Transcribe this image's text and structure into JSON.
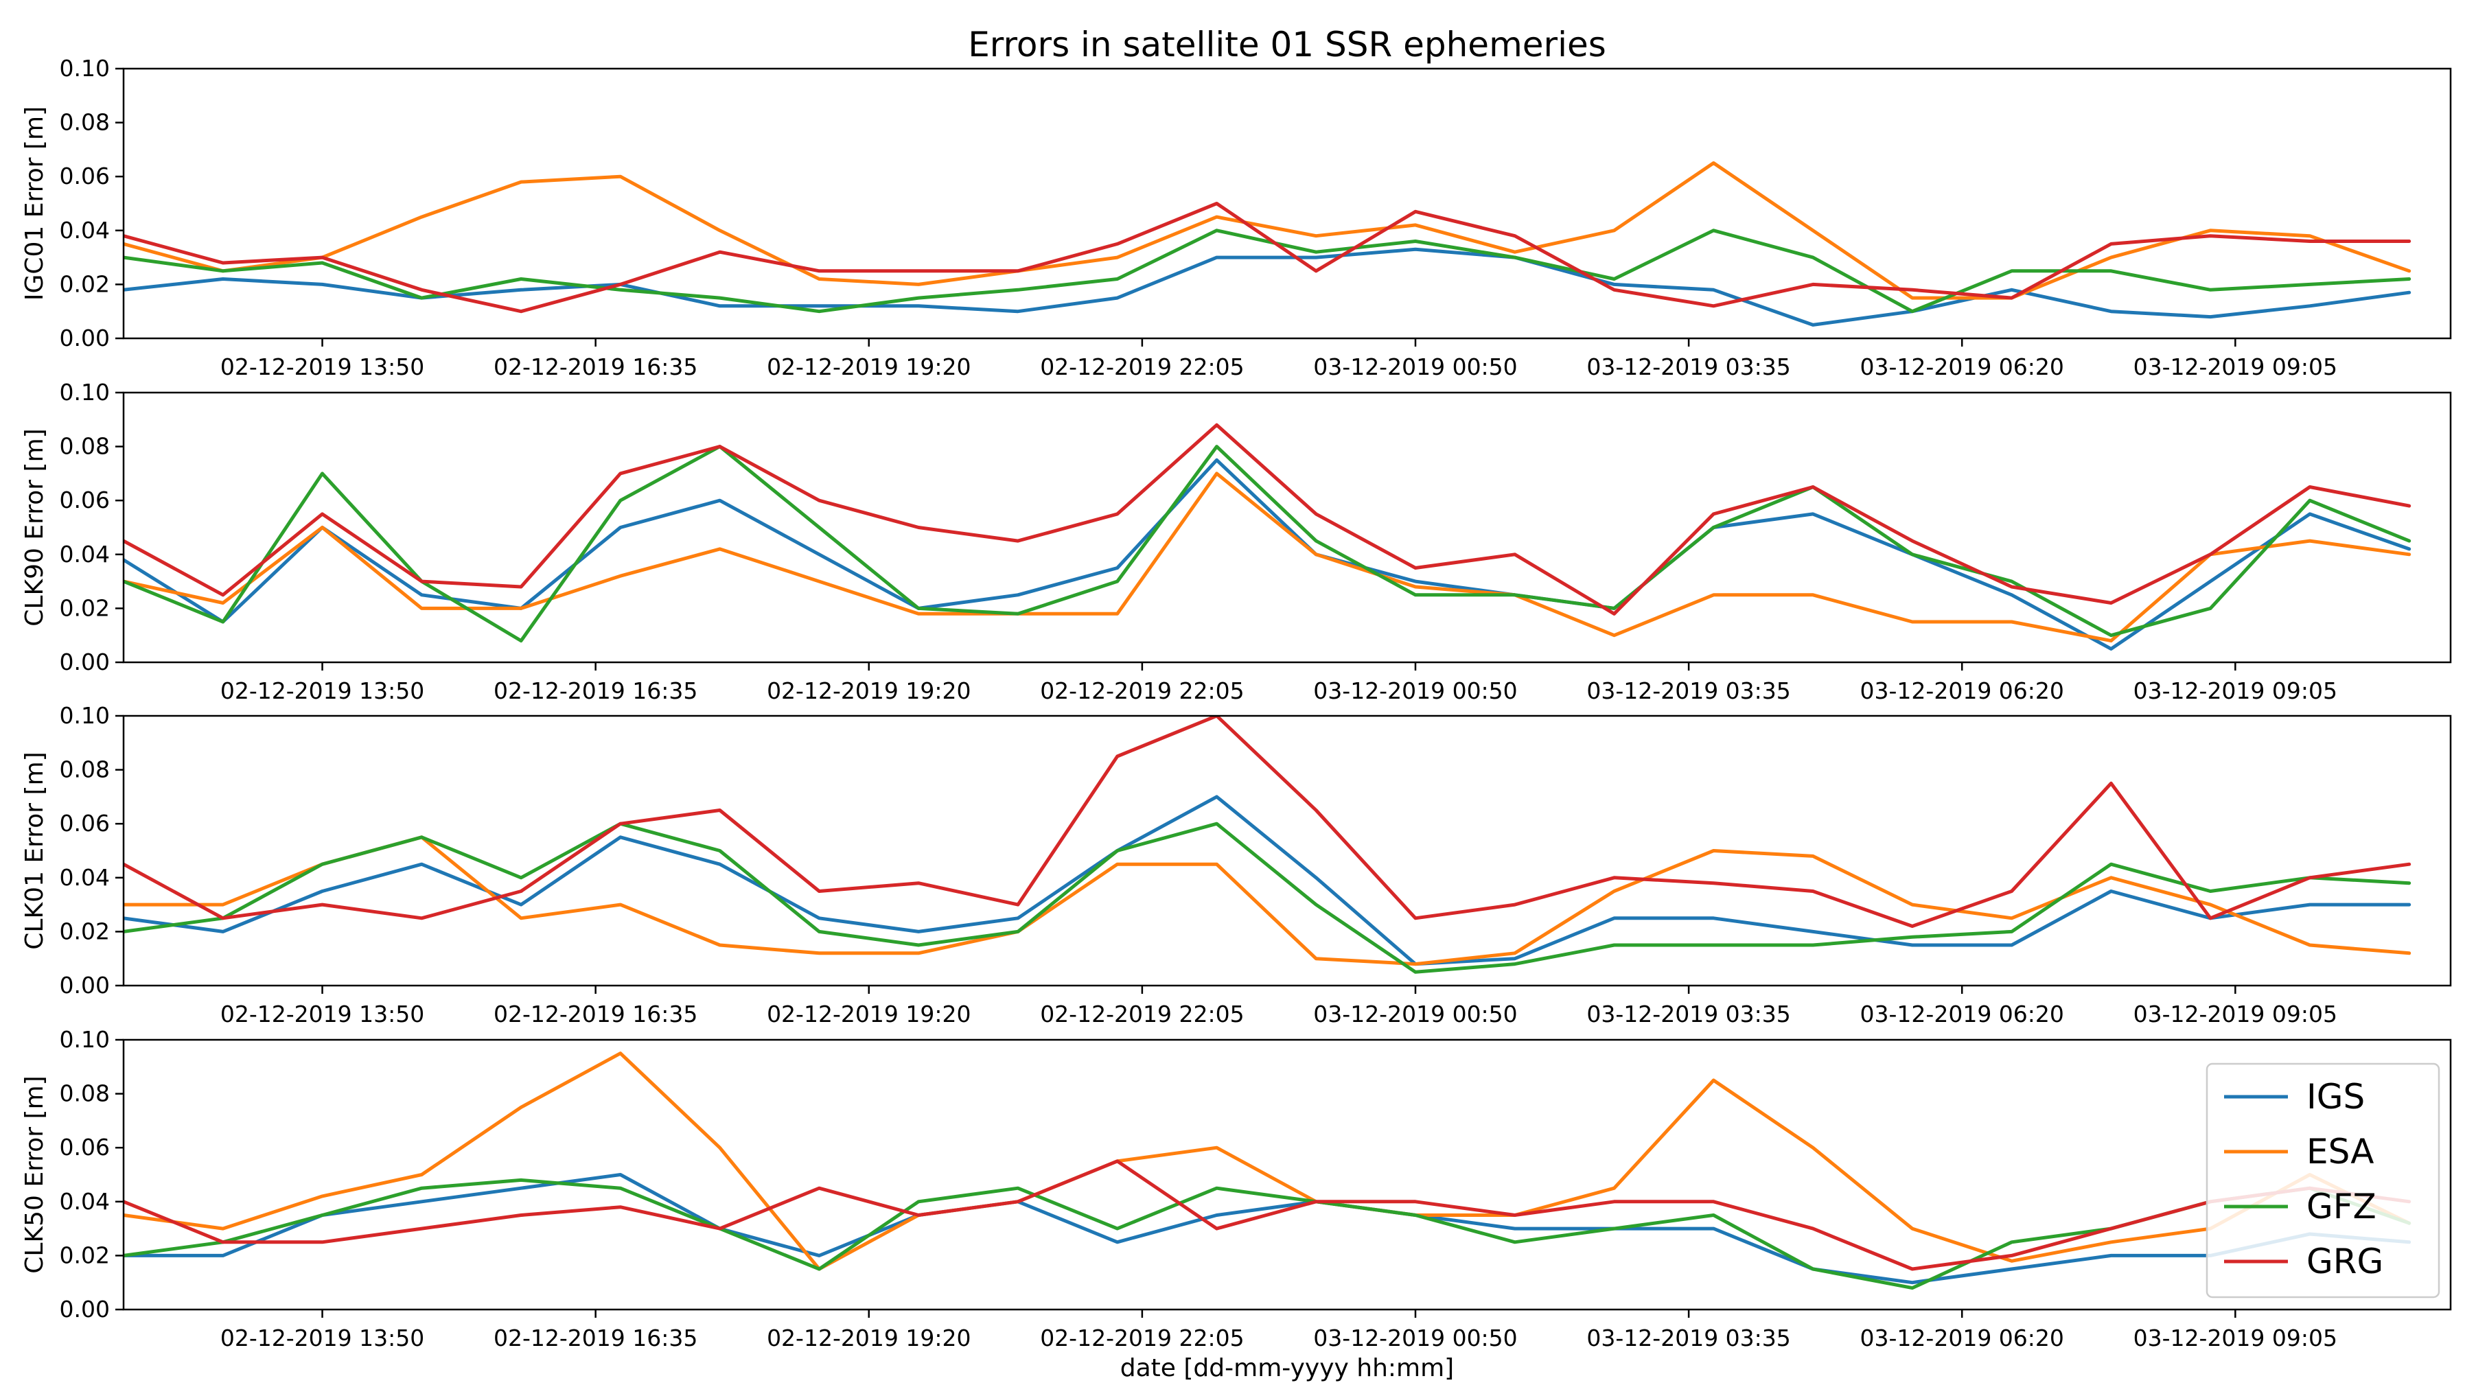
{
  "chart_data": {
    "type": "line",
    "title": "Errors in satellite 01 SSR ephemeries",
    "xlabel": "date [dd-mm-yyyy hh:mm]",
    "x_tick_labels": [
      "02-12-2019 13:50",
      "02-12-2019 16:35",
      "02-12-2019 19:20",
      "02-12-2019 22:05",
      "03-12-2019 00:50",
      "03-12-2019 03:35",
      "03-12-2019 06:20",
      "03-12-2019 09:05"
    ],
    "x": [
      "02-12-2019 11:50",
      "02-12-2019 12:50",
      "02-12-2019 13:50",
      "02-12-2019 14:50",
      "02-12-2019 15:50",
      "02-12-2019 16:50",
      "02-12-2019 17:50",
      "02-12-2019 18:50",
      "02-12-2019 19:50",
      "02-12-2019 20:50",
      "02-12-2019 21:50",
      "02-12-2019 22:50",
      "02-12-2019 23:50",
      "03-12-2019 00:50",
      "03-12-2019 01:50",
      "03-12-2019 02:50",
      "03-12-2019 03:50",
      "03-12-2019 04:50",
      "03-12-2019 05:50",
      "03-12-2019 06:50",
      "03-12-2019 07:50",
      "03-12-2019 08:50",
      "03-12-2019 09:50",
      "03-12-2019 10:50"
    ],
    "legend": {
      "position": "lower-right",
      "entries": [
        "IGS",
        "ESA",
        "GFZ",
        "GRG"
      ]
    },
    "colors": {
      "IGS": "#1f77b4",
      "ESA": "#ff7f0e",
      "GFZ": "#2ca02c",
      "GRG": "#d62728"
    },
    "y_ticks": [
      "0.00",
      "0.02",
      "0.04",
      "0.06",
      "0.08",
      "0.10"
    ],
    "panels": [
      {
        "ylabel": "IGC01 Error [m]",
        "ylim": [
          0,
          0.1
        ],
        "series": [
          {
            "name": "IGS",
            "values": [
              0.018,
              0.022,
              0.02,
              0.015,
              0.018,
              0.02,
              0.012,
              0.012,
              0.012,
              0.01,
              0.015,
              0.03,
              0.03,
              0.033,
              0.03,
              0.02,
              0.018,
              0.005,
              0.01,
              0.018,
              0.01,
              0.008,
              0.012,
              0.017
            ]
          },
          {
            "name": "ESA",
            "values": [
              0.035,
              0.025,
              0.03,
              0.045,
              0.058,
              0.06,
              0.04,
              0.022,
              0.02,
              0.025,
              0.03,
              0.045,
              0.038,
              0.042,
              0.032,
              0.04,
              0.065,
              0.04,
              0.015,
              0.015,
              0.03,
              0.04,
              0.038,
              0.025
            ]
          },
          {
            "name": "GFZ",
            "values": [
              0.03,
              0.025,
              0.028,
              0.015,
              0.022,
              0.018,
              0.015,
              0.01,
              0.015,
              0.018,
              0.022,
              0.04,
              0.032,
              0.036,
              0.03,
              0.022,
              0.04,
              0.03,
              0.01,
              0.025,
              0.025,
              0.018,
              0.02,
              0.022
            ]
          },
          {
            "name": "GRG",
            "values": [
              0.038,
              0.028,
              0.03,
              0.018,
              0.01,
              0.02,
              0.032,
              0.025,
              0.025,
              0.025,
              0.035,
              0.05,
              0.025,
              0.047,
              0.038,
              0.018,
              0.012,
              0.02,
              0.018,
              0.015,
              0.035,
              0.038,
              0.036,
              0.036
            ]
          }
        ]
      },
      {
        "ylabel": "CLK90 Error [m]",
        "ylim": [
          0,
          0.1
        ],
        "series": [
          {
            "name": "IGS",
            "values": [
              0.038,
              0.015,
              0.05,
              0.025,
              0.02,
              0.05,
              0.06,
              0.04,
              0.02,
              0.025,
              0.035,
              0.075,
              0.04,
              0.03,
              0.025,
              0.02,
              0.05,
              0.055,
              0.04,
              0.025,
              0.005,
              0.03,
              0.055,
              0.042
            ]
          },
          {
            "name": "ESA",
            "values": [
              0.03,
              0.022,
              0.05,
              0.02,
              0.02,
              0.032,
              0.042,
              0.03,
              0.018,
              0.018,
              0.018,
              0.07,
              0.04,
              0.028,
              0.025,
              0.01,
              0.025,
              0.025,
              0.015,
              0.015,
              0.008,
              0.04,
              0.045,
              0.04
            ]
          },
          {
            "name": "GFZ",
            "values": [
              0.03,
              0.015,
              0.07,
              0.03,
              0.008,
              0.06,
              0.08,
              0.05,
              0.02,
              0.018,
              0.03,
              0.08,
              0.045,
              0.025,
              0.025,
              0.02,
              0.05,
              0.065,
              0.04,
              0.03,
              0.01,
              0.02,
              0.06,
              0.045
            ]
          },
          {
            "name": "GRG",
            "values": [
              0.045,
              0.025,
              0.055,
              0.03,
              0.028,
              0.07,
              0.08,
              0.06,
              0.05,
              0.045,
              0.055,
              0.088,
              0.055,
              0.035,
              0.04,
              0.018,
              0.055,
              0.065,
              0.045,
              0.028,
              0.022,
              0.04,
              0.065,
              0.058
            ]
          }
        ]
      },
      {
        "ylabel": "CLK01 Error [m]",
        "ylim": [
          0,
          0.1
        ],
        "series": [
          {
            "name": "IGS",
            "values": [
              0.025,
              0.02,
              0.035,
              0.045,
              0.03,
              0.055,
              0.045,
              0.025,
              0.02,
              0.025,
              0.05,
              0.07,
              0.04,
              0.008,
              0.01,
              0.025,
              0.025,
              0.02,
              0.015,
              0.015,
              0.035,
              0.025,
              0.03,
              0.03
            ]
          },
          {
            "name": "ESA",
            "values": [
              0.03,
              0.03,
              0.045,
              0.055,
              0.025,
              0.03,
              0.015,
              0.012,
              0.012,
              0.02,
              0.045,
              0.045,
              0.01,
              0.008,
              0.012,
              0.035,
              0.05,
              0.048,
              0.03,
              0.025,
              0.04,
              0.03,
              0.015,
              0.012
            ]
          },
          {
            "name": "GFZ",
            "values": [
              0.02,
              0.025,
              0.045,
              0.055,
              0.04,
              0.06,
              0.05,
              0.02,
              0.015,
              0.02,
              0.05,
              0.06,
              0.03,
              0.005,
              0.008,
              0.015,
              0.015,
              0.015,
              0.018,
              0.02,
              0.045,
              0.035,
              0.04,
              0.038
            ]
          },
          {
            "name": "GRG",
            "values": [
              0.045,
              0.025,
              0.03,
              0.025,
              0.035,
              0.06,
              0.065,
              0.035,
              0.038,
              0.03,
              0.085,
              0.1,
              0.065,
              0.025,
              0.03,
              0.04,
              0.038,
              0.035,
              0.022,
              0.035,
              0.075,
              0.025,
              0.04,
              0.045
            ]
          }
        ]
      },
      {
        "ylabel": "CLK50 Error [m]",
        "ylim": [
          0,
          0.1
        ],
        "series": [
          {
            "name": "IGS",
            "values": [
              0.02,
              0.02,
              0.035,
              0.04,
              0.045,
              0.05,
              0.03,
              0.02,
              0.035,
              0.04,
              0.025,
              0.035,
              0.04,
              0.035,
              0.03,
              0.03,
              0.03,
              0.015,
              0.01,
              0.015,
              0.02,
              0.02,
              0.028,
              0.025
            ]
          },
          {
            "name": "ESA",
            "values": [
              0.035,
              0.03,
              0.042,
              0.05,
              0.075,
              0.095,
              0.06,
              0.015,
              0.035,
              0.04,
              0.055,
              0.06,
              0.04,
              0.035,
              0.035,
              0.045,
              0.085,
              0.06,
              0.03,
              0.018,
              0.025,
              0.03,
              0.05,
              0.032
            ]
          },
          {
            "name": "GFZ",
            "values": [
              0.02,
              0.025,
              0.035,
              0.045,
              0.048,
              0.045,
              0.03,
              0.015,
              0.04,
              0.045,
              0.03,
              0.045,
              0.04,
              0.035,
              0.025,
              0.03,
              0.035,
              0.015,
              0.008,
              0.025,
              0.03,
              0.04,
              0.045,
              0.032
            ]
          },
          {
            "name": "GRG",
            "values": [
              0.04,
              0.025,
              0.025,
              0.03,
              0.035,
              0.038,
              0.03,
              0.045,
              0.035,
              0.04,
              0.055,
              0.03,
              0.04,
              0.04,
              0.035,
              0.04,
              0.04,
              0.03,
              0.015,
              0.02,
              0.03,
              0.04,
              0.045,
              0.04
            ]
          }
        ]
      }
    ]
  }
}
